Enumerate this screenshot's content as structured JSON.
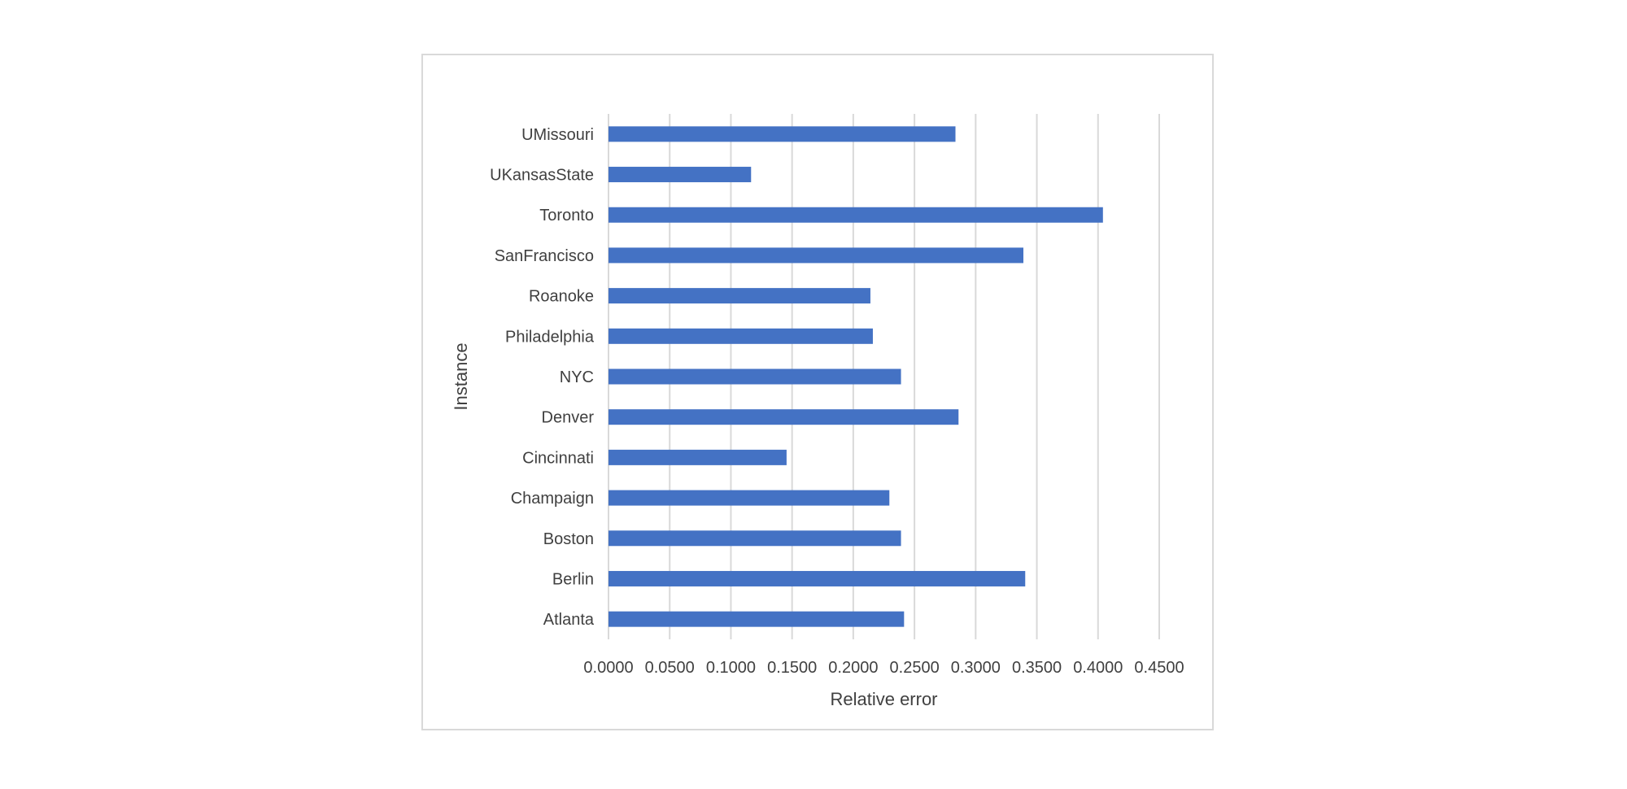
{
  "chart_data": {
    "type": "bar",
    "orientation": "horizontal",
    "categories": [
      "UMissouri",
      "UKansasState",
      "Toronto",
      "SanFrancisco",
      "Roanoke",
      "Philadelphia",
      "NYC",
      "Denver",
      "Cincinnati",
      "Champaign",
      "Boston",
      "Berlin",
      "Atlanta"
    ],
    "values": [
      0.2835,
      0.1165,
      0.404,
      0.339,
      0.214,
      0.216,
      0.239,
      0.286,
      0.1455,
      0.2295,
      0.239,
      0.3405,
      0.2415
    ],
    "title": "",
    "xlabel": "Relative error",
    "ylabel": "Instance",
    "xlim": [
      0,
      0.45
    ],
    "xticks": [
      "0.0000",
      "0.0500",
      "0.1000",
      "0.1500",
      "0.2000",
      "0.2500",
      "0.3000",
      "0.3500",
      "0.4000",
      "0.4500"
    ],
    "grid": true,
    "legend": "none",
    "bar_color": "#4472c4",
    "grid_color": "#d9d9d9",
    "text_color": "#404040"
  }
}
